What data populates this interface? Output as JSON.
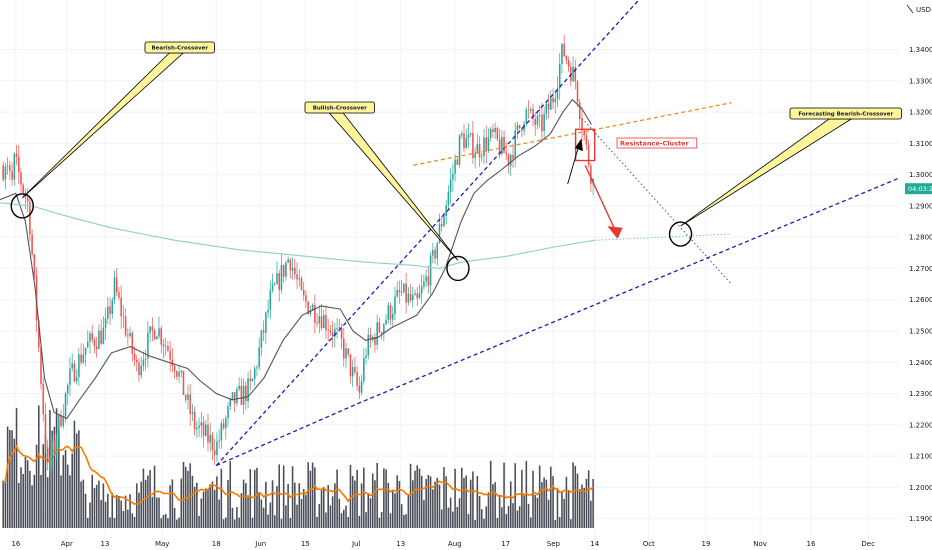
{
  "chart_data": {
    "type": "candlestick",
    "instrument_currency": "USD",
    "y_ticks": [
      "1.34000",
      "1.33000",
      "1.32000",
      "1.31000",
      "1.30000",
      "1.29000",
      "1.28000",
      "1.27000",
      "1.26000",
      "1.25000",
      "1.24000",
      "1.23000",
      "1.22000",
      "1.21000",
      "1.20000",
      "1.19000"
    ],
    "y_tick_values": [
      1.34,
      1.33,
      1.32,
      1.31,
      1.3,
      1.29,
      1.28,
      1.27,
      1.26,
      1.25,
      1.24,
      1.23,
      1.22,
      1.21,
      1.2,
      1.19
    ],
    "ylim": [
      1.187,
      1.352
    ],
    "x_ticks": [
      "16",
      "Apr",
      "13",
      "May",
      "18",
      "Jun",
      "15",
      "Jul",
      "13",
      "Aug",
      "17",
      "Sep",
      "14",
      "Oct",
      "19",
      "Nov",
      "16",
      "Dec"
    ],
    "x_tick_days": [
      0,
      16,
      28,
      46,
      63,
      77,
      91,
      107,
      121,
      138,
      154,
      169,
      182,
      199,
      217,
      234,
      250,
      268
    ],
    "x_range_days": [
      -5,
      278
    ],
    "last_price": {
      "label": "04:03:25",
      "value": 1.2955,
      "color": "#22ab94"
    },
    "candle_colors": {
      "up": "#26a69a",
      "down": "#ef5350"
    },
    "volume_color": "#2a2e39",
    "ohlc_keypoints": [
      [
        0,
        1.303
      ],
      [
        4,
        1.29
      ],
      [
        10,
        1.205
      ],
      [
        17,
        1.235
      ],
      [
        22,
        1.245
      ],
      [
        28,
        1.25
      ],
      [
        31,
        1.264
      ],
      [
        38,
        1.238
      ],
      [
        44,
        1.252
      ],
      [
        50,
        1.24
      ],
      [
        56,
        1.22
      ],
      [
        63,
        1.213
      ],
      [
        68,
        1.227
      ],
      [
        74,
        1.232
      ],
      [
        80,
        1.26
      ],
      [
        86,
        1.274
      ],
      [
        90,
        1.26
      ],
      [
        96,
        1.255
      ],
      [
        102,
        1.247
      ],
      [
        108,
        1.23
      ],
      [
        110,
        1.244
      ],
      [
        115,
        1.252
      ],
      [
        121,
        1.262
      ],
      [
        126,
        1.258
      ],
      [
        131,
        1.272
      ],
      [
        135,
        1.29
      ],
      [
        140,
        1.312
      ],
      [
        145,
        1.308
      ],
      [
        150,
        1.312
      ],
      [
        155,
        1.305
      ],
      [
        160,
        1.32
      ],
      [
        165,
        1.315
      ],
      [
        169,
        1.325
      ],
      [
        172,
        1.34
      ],
      [
        176,
        1.33
      ],
      [
        179,
        1.31
      ],
      [
        182,
        1.295
      ]
    ],
    "series": [
      {
        "name": "",
        "kind": "moving_average",
        "color": "#555555",
        "points": [
          [
            -5,
            1.292
          ],
          [
            0,
            1.294
          ],
          [
            3,
            1.285
          ],
          [
            6,
            1.264
          ],
          [
            9,
            1.235
          ],
          [
            12,
            1.224
          ],
          [
            16,
            1.222
          ],
          [
            20,
            1.228
          ],
          [
            25,
            1.235
          ],
          [
            30,
            1.243
          ],
          [
            36,
            1.245
          ],
          [
            42,
            1.242
          ],
          [
            48,
            1.24
          ],
          [
            54,
            1.238
          ],
          [
            58,
            1.234
          ],
          [
            63,
            1.23
          ],
          [
            68,
            1.228
          ],
          [
            73,
            1.229
          ],
          [
            78,
            1.235
          ],
          [
            84,
            1.247
          ],
          [
            90,
            1.255
          ],
          [
            96,
            1.258
          ],
          [
            102,
            1.257
          ],
          [
            106,
            1.25
          ],
          [
            110,
            1.247
          ],
          [
            114,
            1.248
          ],
          [
            118,
            1.251
          ],
          [
            122,
            1.253
          ],
          [
            126,
            1.255
          ],
          [
            131,
            1.262
          ],
          [
            135,
            1.27
          ],
          [
            140,
            1.285
          ],
          [
            144,
            1.294
          ],
          [
            148,
            1.298
          ],
          [
            152,
            1.301
          ],
          [
            158,
            1.306
          ],
          [
            163,
            1.309
          ],
          [
            168,
            1.313
          ],
          [
            172,
            1.32
          ],
          [
            175,
            1.324
          ],
          [
            178,
            1.321
          ],
          [
            181,
            1.316
          ]
        ]
      },
      {
        "name": "",
        "kind": "moving_average",
        "color": "#8fd1bd",
        "points": [
          [
            -5,
            1.291
          ],
          [
            5,
            1.29
          ],
          [
            15,
            1.287
          ],
          [
            30,
            1.283
          ],
          [
            50,
            1.279
          ],
          [
            70,
            1.276
          ],
          [
            90,
            1.274
          ],
          [
            110,
            1.272
          ],
          [
            125,
            1.271
          ],
          [
            133,
            1.27
          ],
          [
            140,
            1.272
          ],
          [
            155,
            1.274
          ],
          [
            170,
            1.277
          ],
          [
            182,
            1.279
          ]
        ]
      },
      {
        "name": "",
        "kind": "moving_average_projection",
        "color": "#7fc7ae",
        "style": "dotted",
        "points": [
          [
            182,
            1.279
          ],
          [
            225,
            1.281
          ]
        ]
      },
      {
        "name": "",
        "kind": "volume_moving_average",
        "color": "#f57c00"
      }
    ],
    "trendlines": [
      {
        "color": "#1a1ab8",
        "style": "dashed",
        "points": [
          [
            63,
            1.207
          ],
          [
            196,
            1.356
          ]
        ]
      },
      {
        "color": "#1a1ab8",
        "style": "dashed",
        "points": [
          [
            63,
            1.207
          ],
          [
            108,
            1.227
          ],
          [
            278,
            1.299
          ]
        ]
      },
      {
        "color": "#f08a24",
        "style": "dashed",
        "points": [
          [
            125,
            1.303
          ],
          [
            225,
            1.323
          ]
        ]
      },
      {
        "color": "#555555",
        "style": "dotted",
        "points": [
          [
            178,
            1.318
          ],
          [
            225,
            1.265
          ]
        ]
      }
    ],
    "annotations": [
      {
        "text": "Bearish-Crossover",
        "kind": "callout",
        "target": [
          2,
          1.29
        ]
      },
      {
        "text": "Bullish-Crossover",
        "kind": "callout",
        "target": [
          139,
          1.27
        ]
      },
      {
        "text": "Forecasting Bearish-Crossover",
        "kind": "callout",
        "target": [
          209,
          1.281
        ]
      },
      {
        "text": "Resistance-Cluster",
        "kind": "label",
        "color": "#e53935"
      }
    ]
  }
}
